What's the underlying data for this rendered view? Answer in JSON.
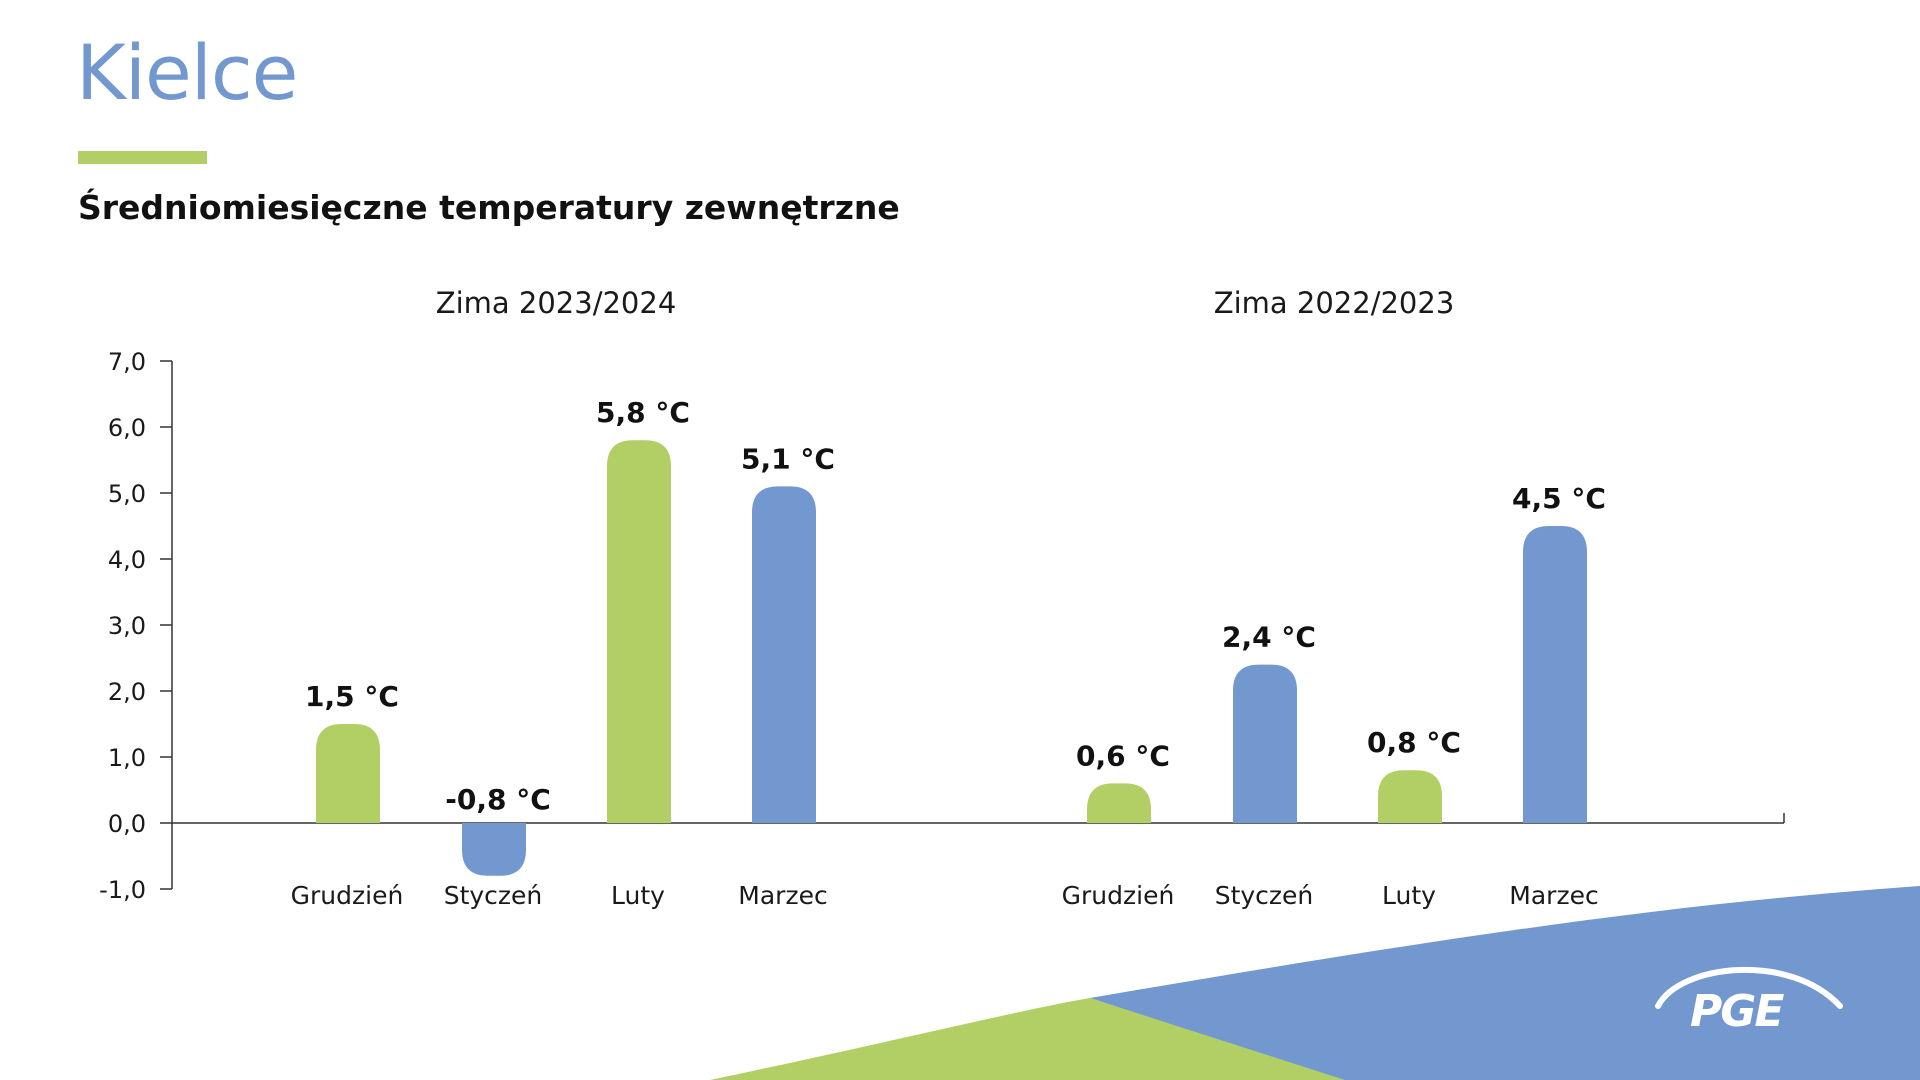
{
  "page": {
    "title": "Kielce",
    "subtitle": "Średniomiesięczne temperatury zewnętrzne",
    "logo_text": "PGE"
  },
  "colors": {
    "title": "#7397cf",
    "green": "#b2cf65",
    "blue": "#7397cf",
    "text": "#111111"
  },
  "chart_data": {
    "type": "bar",
    "yticks": [
      "7,0",
      "6,0",
      "5,0",
      "4,0",
      "3,0",
      "2,0",
      "1,0",
      "0,0",
      "-1,0"
    ],
    "ylim": [
      -1,
      7
    ],
    "unit": "°C",
    "groups": [
      {
        "name": "Zima 2023/2024",
        "categories": [
          "Grudzień",
          "Styczeń",
          "Luty",
          "Marzec"
        ],
        "values": [
          1.5,
          -0.8,
          5.8,
          5.1
        ],
        "labels": [
          "1,5 °C",
          "-0,8 °C",
          "5,8 °C",
          "5,1 °C"
        ],
        "colors": [
          "green",
          "blue",
          "green",
          "blue"
        ]
      },
      {
        "name": "Zima 2022/2023",
        "categories": [
          "Grudzień",
          "Styczeń",
          "Luty",
          "Marzec"
        ],
        "values": [
          0.6,
          2.4,
          0.8,
          4.5
        ],
        "labels": [
          "0,6 °C",
          "2,4 °C",
          "0,8 °C",
          "4,5 °C"
        ],
        "colors": [
          "green",
          "blue",
          "green",
          "blue"
        ]
      }
    ]
  }
}
